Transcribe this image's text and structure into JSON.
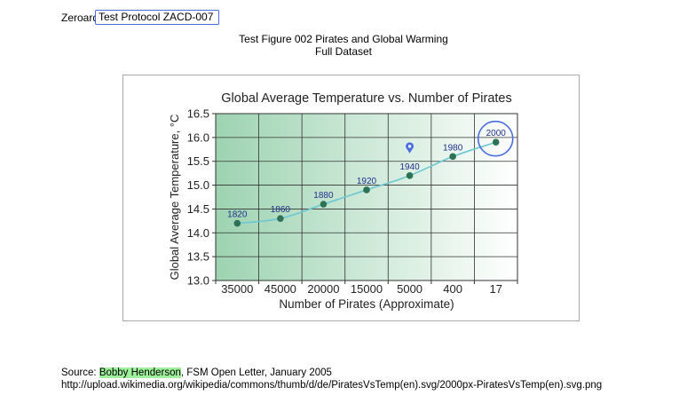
{
  "header": {
    "app_name": "Zeroard",
    "doc_title": "Test Protocol ZACD-007"
  },
  "figure": {
    "title_line1": "Test Figure 002 Pirates and Global Warming",
    "title_line2": "Full Dataset"
  },
  "source": {
    "prefix": "Source: ",
    "author": "Bobby Henderson",
    "suffix": ", FSM Open Letter, January 2005",
    "url": "http://upload.wikimedia.org/wikipedia/commons/thumb/d/de/PiratesVsTemp(en).svg/2000px-PiratesVsTemp(en).svg.png"
  },
  "colors": {
    "annotation_blue": "#4a6ee0",
    "highlight_green": "#9ef09a",
    "point_green": "#2e7256",
    "line_cyan": "#6cc7d2",
    "year_label": "#1f2f8a"
  },
  "chart_data": {
    "type": "line",
    "title": "Global Average Temperature vs. Number of Pirates",
    "xlabel": "Number of Pirates (Approximate)",
    "ylabel": "Global Average Temperature, °C",
    "categories": [
      "35000",
      "45000",
      "20000",
      "15000",
      "5000",
      "400",
      "17"
    ],
    "years": [
      "1820",
      "1860",
      "1880",
      "1920",
      "1940",
      "1980",
      "2000"
    ],
    "values": [
      14.2,
      14.3,
      14.6,
      14.9,
      15.2,
      15.6,
      15.9
    ],
    "ylim": [
      13.0,
      16.5
    ],
    "yticks": [
      "13.0",
      "13.5",
      "14.0",
      "14.5",
      "15.0",
      "15.5",
      "16.0",
      "16.5"
    ],
    "grid": true,
    "annotations": [
      {
        "type": "circle",
        "target_year": "2000"
      },
      {
        "type": "map-pin",
        "target_year": "1940"
      }
    ]
  }
}
